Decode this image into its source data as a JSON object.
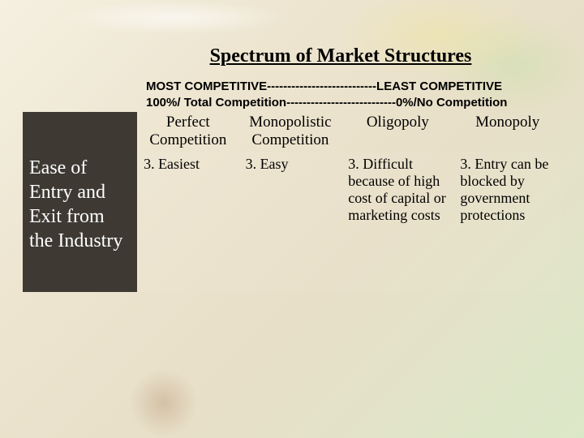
{
  "title": "Spectrum of Market Structures",
  "spectrum": {
    "line1": "MOST COMPETITIVE---------------------------LEAST COMPETITIVE",
    "line2": "100%/ Total Competition---------------------------0%/No Competition"
  },
  "columns": {
    "c1": "Perfect Competition",
    "c2": "Monopolistic Competition",
    "c3": "Oligopoly",
    "c4": "Monopoly"
  },
  "row": {
    "label": "Ease of Entry and Exit from the Industry",
    "c1": "3. Easiest",
    "c2": "3. Easy",
    "c3": "3. Difficult because of high cost of capital or marketing costs",
    "c4": "3. Entry can be blocked by government protections"
  },
  "colors": {
    "header_bg": "#3e3a33",
    "header_text": "#ffffff",
    "body_text": "#000000"
  }
}
